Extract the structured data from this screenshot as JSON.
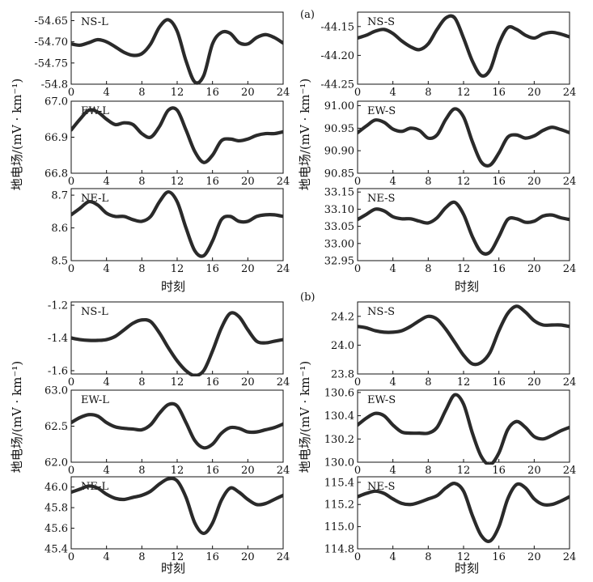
{
  "figure": {
    "x_axis_label": "时刻",
    "y_axis_label": "地电场/(mV · km⁻¹)",
    "group_a_tag": "(a)",
    "group_b_tag": "(b)"
  },
  "chart_data": [
    {
      "type": "line",
      "id": "a-NS-L",
      "group": "a",
      "col": 0,
      "row": 0,
      "label": "NS-L",
      "xlim": [
        0,
        24
      ],
      "xticks": [
        0,
        4,
        8,
        12,
        16,
        20,
        24
      ],
      "ylim": [
        -54.8,
        -54.63
      ],
      "yticks": [
        -54.65,
        -54.7,
        -54.75,
        -54.8
      ],
      "yticklabels": [
        "-54.65",
        "-54.70",
        "-54.75",
        "-54.8"
      ],
      "x": [
        0,
        1,
        2,
        3,
        4,
        5,
        6,
        7,
        8,
        9,
        10,
        11,
        12,
        13,
        14,
        15,
        16,
        17,
        18,
        19,
        20,
        21,
        22,
        23,
        24
      ],
      "y": [
        -54.705,
        -54.708,
        -54.702,
        -54.695,
        -54.7,
        -54.712,
        -54.725,
        -54.732,
        -54.728,
        -54.705,
        -54.665,
        -54.648,
        -54.675,
        -54.745,
        -54.795,
        -54.78,
        -54.705,
        -54.678,
        -54.68,
        -54.702,
        -54.705,
        -54.69,
        -54.683,
        -54.69,
        -54.703
      ]
    },
    {
      "type": "line",
      "id": "a-EW-L",
      "group": "a",
      "col": 0,
      "row": 1,
      "label": "EW-L",
      "xlim": [
        0,
        24
      ],
      "xticks": [
        0,
        4,
        8,
        12,
        16,
        20,
        24
      ],
      "ylim": [
        66.8,
        67.0
      ],
      "yticks": [
        67.0,
        66.9,
        66.8
      ],
      "yticklabels": [
        "67.0",
        "66.9",
        "66.8"
      ],
      "x": [
        0,
        1,
        2,
        3,
        4,
        5,
        6,
        7,
        8,
        9,
        10,
        11,
        12,
        13,
        14,
        15,
        16,
        17,
        18,
        19,
        20,
        21,
        22,
        23,
        24
      ],
      "y": [
        66.92,
        66.95,
        66.975,
        66.97,
        66.95,
        66.935,
        66.94,
        66.935,
        66.91,
        66.9,
        66.93,
        66.975,
        66.975,
        66.92,
        66.86,
        66.83,
        66.85,
        66.89,
        66.895,
        66.89,
        66.895,
        66.905,
        66.91,
        66.91,
        66.915
      ]
    },
    {
      "type": "line",
      "id": "a-NE-L",
      "group": "a",
      "col": 0,
      "row": 2,
      "label": "NE-L",
      "xlim": [
        0,
        24
      ],
      "xticks": [
        0,
        4,
        8,
        12,
        16,
        20,
        24
      ],
      "ylim": [
        8.5,
        8.72
      ],
      "yticks": [
        8.7,
        8.6,
        8.5
      ],
      "yticklabels": [
        "8.7",
        "8.6",
        "8.5"
      ],
      "x": [
        0,
        1,
        2,
        3,
        4,
        5,
        6,
        7,
        8,
        9,
        10,
        11,
        12,
        13,
        14,
        15,
        16,
        17,
        18,
        19,
        20,
        21,
        22,
        23,
        24
      ],
      "y": [
        8.64,
        8.66,
        8.68,
        8.67,
        8.645,
        8.635,
        8.635,
        8.625,
        8.62,
        8.635,
        8.68,
        8.71,
        8.68,
        8.6,
        8.53,
        8.515,
        8.56,
        8.625,
        8.635,
        8.62,
        8.62,
        8.635,
        8.64,
        8.64,
        8.635
      ]
    },
    {
      "type": "line",
      "id": "a-NS-S",
      "group": "a",
      "col": 1,
      "row": 0,
      "label": "NS-S",
      "xlim": [
        0,
        24
      ],
      "xticks": [
        0,
        4,
        8,
        12,
        16,
        20,
        24
      ],
      "ylim": [
        -44.25,
        -44.125
      ],
      "yticks": [
        -44.15,
        -44.2,
        -44.25
      ],
      "yticklabels": [
        "-44.15",
        "-44.20",
        "-44.25"
      ],
      "x": [
        0,
        1,
        2,
        3,
        4,
        5,
        6,
        7,
        8,
        9,
        10,
        11,
        12,
        13,
        14,
        15,
        16,
        17,
        18,
        19,
        20,
        21,
        22,
        23,
        24
      ],
      "y": [
        -44.17,
        -44.165,
        -44.158,
        -44.155,
        -44.162,
        -44.175,
        -44.185,
        -44.19,
        -44.18,
        -44.155,
        -44.135,
        -44.135,
        -44.17,
        -44.21,
        -44.235,
        -44.225,
        -44.18,
        -44.152,
        -44.155,
        -44.165,
        -44.17,
        -44.163,
        -44.16,
        -44.163,
        -44.168
      ]
    },
    {
      "type": "line",
      "id": "a-EW-S",
      "group": "a",
      "col": 1,
      "row": 1,
      "label": "EW-S",
      "xlim": [
        0,
        24
      ],
      "xticks": [
        0,
        4,
        8,
        12,
        16,
        20,
        24
      ],
      "ylim": [
        90.85,
        91.01
      ],
      "yticks": [
        91.0,
        90.95,
        90.9,
        90.85
      ],
      "yticklabels": [
        "91.00",
        "90.95",
        "90.90",
        "90.85"
      ],
      "x": [
        0,
        1,
        2,
        3,
        4,
        5,
        6,
        7,
        8,
        9,
        10,
        11,
        12,
        13,
        14,
        15,
        16,
        17,
        18,
        19,
        20,
        21,
        22,
        23,
        24
      ],
      "y": [
        90.94,
        90.955,
        90.968,
        90.963,
        90.948,
        90.943,
        90.95,
        90.945,
        90.928,
        90.935,
        90.97,
        90.993,
        90.975,
        90.92,
        90.875,
        90.868,
        90.895,
        90.93,
        90.935,
        90.928,
        90.933,
        90.945,
        90.952,
        90.947,
        90.94
      ]
    },
    {
      "type": "line",
      "id": "a-NE-S",
      "group": "a",
      "col": 1,
      "row": 2,
      "label": "NE-S",
      "xlim": [
        0,
        24
      ],
      "xticks": [
        0,
        4,
        8,
        12,
        16,
        20,
        24
      ],
      "ylim": [
        32.95,
        33.16
      ],
      "yticks": [
        33.15,
        33.1,
        33.05,
        33.0,
        32.95
      ],
      "yticklabels": [
        "33.15",
        "33.10",
        "33.05",
        "33.00",
        "32.95"
      ],
      "x": [
        0,
        1,
        2,
        3,
        4,
        5,
        6,
        7,
        8,
        9,
        10,
        11,
        12,
        13,
        14,
        15,
        16,
        17,
        18,
        19,
        20,
        21,
        22,
        23,
        24
      ],
      "y": [
        33.07,
        33.085,
        33.1,
        33.095,
        33.078,
        33.072,
        33.072,
        33.065,
        33.06,
        33.075,
        33.105,
        33.12,
        33.085,
        33.02,
        32.975,
        32.975,
        33.02,
        33.07,
        33.072,
        33.062,
        33.065,
        33.08,
        33.083,
        33.075,
        33.07
      ]
    },
    {
      "type": "line",
      "id": "b-NS-L",
      "group": "b",
      "col": 0,
      "row": 0,
      "label": "NS-L",
      "xlim": [
        0,
        24
      ],
      "xticks": [
        0,
        4,
        8,
        12,
        16,
        20,
        24
      ],
      "ylim": [
        -1.62,
        -1.18
      ],
      "yticks": [
        -1.2,
        -1.4,
        -1.6
      ],
      "yticklabels": [
        "-1.2",
        "-1.4",
        "-1.6"
      ],
      "x": [
        0,
        1,
        2,
        3,
        4,
        5,
        6,
        7,
        8,
        9,
        10,
        11,
        12,
        13,
        14,
        15,
        16,
        17,
        18,
        19,
        20,
        21,
        22,
        23,
        24
      ],
      "y": [
        -1.4,
        -1.41,
        -1.415,
        -1.415,
        -1.41,
        -1.39,
        -1.35,
        -1.31,
        -1.29,
        -1.3,
        -1.37,
        -1.46,
        -1.54,
        -1.6,
        -1.63,
        -1.6,
        -1.48,
        -1.34,
        -1.25,
        -1.27,
        -1.35,
        -1.42,
        -1.43,
        -1.42,
        -1.41
      ]
    },
    {
      "type": "line",
      "id": "b-EW-L",
      "group": "b",
      "col": 0,
      "row": 1,
      "label": "EW-L",
      "xlim": [
        0,
        24
      ],
      "xticks": [
        0,
        4,
        8,
        12,
        16,
        20,
        24
      ],
      "ylim": [
        62.0,
        63.0
      ],
      "yticks": [
        63.0,
        62.5,
        62.0
      ],
      "yticklabels": [
        "63.0",
        "62.5",
        "62.0"
      ],
      "x": [
        0,
        1,
        2,
        3,
        4,
        5,
        6,
        7,
        8,
        9,
        10,
        11,
        12,
        13,
        14,
        15,
        16,
        17,
        18,
        19,
        20,
        21,
        22,
        23,
        24
      ],
      "y": [
        62.55,
        62.62,
        62.66,
        62.64,
        62.55,
        62.49,
        62.47,
        62.46,
        62.45,
        62.52,
        62.68,
        62.8,
        62.78,
        62.55,
        62.3,
        62.2,
        62.25,
        62.4,
        62.48,
        62.47,
        62.42,
        62.42,
        62.45,
        62.48,
        62.53
      ]
    },
    {
      "type": "line",
      "id": "b-NE-L",
      "group": "b",
      "col": 0,
      "row": 2,
      "label": "NE-L",
      "xlim": [
        0,
        24
      ],
      "xticks": [
        0,
        4,
        8,
        12,
        16,
        20,
        24
      ],
      "ylim": [
        45.4,
        46.1
      ],
      "yticks": [
        46.0,
        45.8,
        45.6,
        45.4
      ],
      "yticklabels": [
        "46.0",
        "45.8",
        "45.6",
        "45.4"
      ],
      "x": [
        0,
        1,
        2,
        3,
        4,
        5,
        6,
        7,
        8,
        9,
        10,
        11,
        12,
        13,
        14,
        15,
        16,
        17,
        18,
        19,
        20,
        21,
        22,
        23,
        24
      ],
      "y": [
        45.95,
        45.98,
        46.01,
        45.99,
        45.93,
        45.89,
        45.88,
        45.9,
        45.92,
        45.96,
        46.03,
        46.08,
        46.06,
        45.9,
        45.65,
        45.55,
        45.65,
        45.87,
        45.99,
        45.95,
        45.88,
        45.83,
        45.84,
        45.88,
        45.92
      ]
    },
    {
      "type": "line",
      "id": "b-NS-S",
      "group": "b",
      "col": 1,
      "row": 0,
      "label": "NS-S",
      "xlim": [
        0,
        24
      ],
      "xticks": [
        0,
        4,
        8,
        12,
        16,
        20,
        24
      ],
      "ylim": [
        23.8,
        24.3
      ],
      "yticks": [
        24.2,
        24.0,
        23.8
      ],
      "yticklabels": [
        "24.2",
        "24.0",
        "23.8"
      ],
      "x": [
        0,
        1,
        2,
        3,
        4,
        5,
        6,
        7,
        8,
        9,
        10,
        11,
        12,
        13,
        14,
        15,
        16,
        17,
        18,
        19,
        20,
        21,
        22,
        23,
        24
      ],
      "y": [
        24.13,
        24.12,
        24.1,
        24.09,
        24.09,
        24.1,
        24.13,
        24.17,
        24.2,
        24.18,
        24.11,
        24.02,
        23.93,
        23.87,
        23.88,
        23.95,
        24.1,
        24.22,
        24.27,
        24.23,
        24.17,
        24.14,
        24.14,
        24.14,
        24.13
      ]
    },
    {
      "type": "line",
      "id": "b-EW-S",
      "group": "b",
      "col": 1,
      "row": 1,
      "label": "EW-S",
      "xlim": [
        0,
        24
      ],
      "xticks": [
        0,
        4,
        8,
        12,
        16,
        20,
        24
      ],
      "ylim": [
        130.0,
        130.62
      ],
      "yticks": [
        130.6,
        130.4,
        130.2,
        130.0
      ],
      "yticklabels": [
        "130.6",
        "130.4",
        "130.2",
        "130.0"
      ],
      "x": [
        0,
        1,
        2,
        3,
        4,
        5,
        6,
        7,
        8,
        9,
        10,
        11,
        12,
        13,
        14,
        15,
        16,
        17,
        18,
        19,
        20,
        21,
        22,
        23,
        24
      ],
      "y": [
        130.32,
        130.38,
        130.42,
        130.4,
        130.32,
        130.26,
        130.25,
        130.25,
        130.25,
        130.3,
        130.45,
        130.58,
        130.5,
        130.25,
        130.05,
        129.98,
        130.08,
        130.28,
        130.35,
        130.3,
        130.22,
        130.2,
        130.23,
        130.27,
        130.3
      ]
    },
    {
      "type": "line",
      "id": "b-NE-S",
      "group": "b",
      "col": 1,
      "row": 2,
      "label": "NE-S",
      "xlim": [
        0,
        24
      ],
      "xticks": [
        0,
        4,
        8,
        12,
        16,
        20,
        24
      ],
      "ylim": [
        114.8,
        115.45
      ],
      "yticks": [
        115.4,
        115.2,
        115.0,
        114.8
      ],
      "yticklabels": [
        "115.4",
        "115.2",
        "115.0",
        "114.8"
      ],
      "x": [
        0,
        1,
        2,
        3,
        4,
        5,
        6,
        7,
        8,
        9,
        10,
        11,
        12,
        13,
        14,
        15,
        16,
        17,
        18,
        19,
        20,
        21,
        22,
        23,
        24
      ],
      "y": [
        115.27,
        115.3,
        115.32,
        115.3,
        115.25,
        115.21,
        115.2,
        115.22,
        115.25,
        115.28,
        115.35,
        115.39,
        115.32,
        115.1,
        114.92,
        114.87,
        115.0,
        115.25,
        115.38,
        115.35,
        115.25,
        115.2,
        115.2,
        115.23,
        115.27
      ]
    }
  ]
}
